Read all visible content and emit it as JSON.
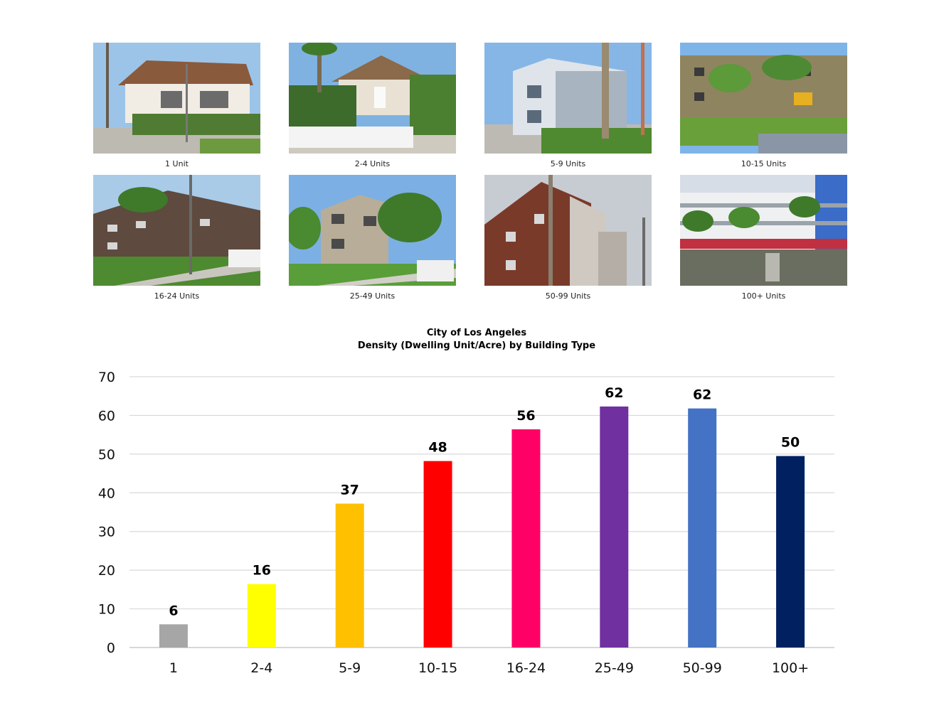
{
  "photos": [
    {
      "caption": "1 Unit"
    },
    {
      "caption": "2-4 Units"
    },
    {
      "caption": "5-9 Units"
    },
    {
      "caption": "10-15 Units"
    },
    {
      "caption": "16-24 Units"
    },
    {
      "caption": "25-49 Units"
    },
    {
      "caption": "50-99 Units"
    },
    {
      "caption": "100+ Units"
    }
  ],
  "chart_data": {
    "type": "bar",
    "title": "City of Los Angeles",
    "subtitle": "Density (Dwelling Unit/Acre) by Building Type",
    "categories": [
      "1",
      "2-4",
      "5-9",
      "10-15",
      "16-24",
      "25-49",
      "50-99",
      "100+"
    ],
    "values": [
      6,
      16.4,
      37.2,
      48.2,
      56.4,
      62.3,
      61.8,
      49.5
    ],
    "data_labels": [
      "6",
      "16",
      "37",
      "48",
      "56",
      "62",
      "62",
      "50"
    ],
    "colors": [
      "#a6a6a6",
      "#ffff00",
      "#ffc000",
      "#ff0000",
      "#ff0066",
      "#7030a0",
      "#4472c4",
      "#002060"
    ],
    "ylim": [
      0,
      70
    ],
    "yticks": [
      "0",
      "10",
      "20",
      "30",
      "40",
      "50",
      "60",
      "70"
    ],
    "grid": true,
    "legend": "none",
    "xlabel": "",
    "ylabel": ""
  }
}
